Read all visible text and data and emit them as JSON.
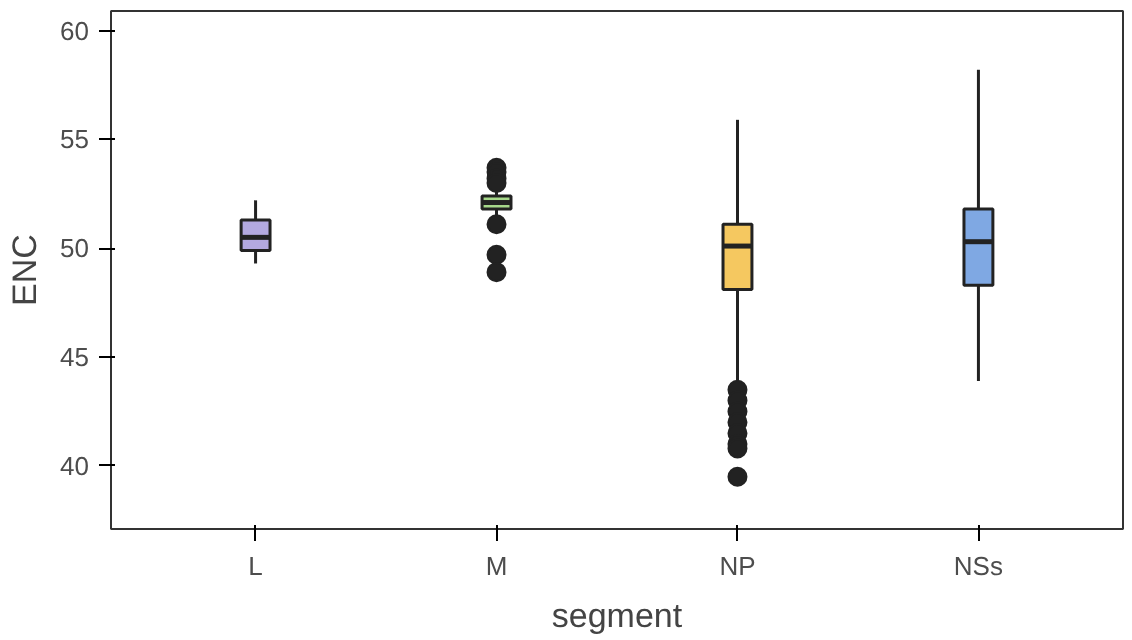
{
  "chart_data": {
    "type": "box",
    "xlabel": "segment",
    "ylabel": "ENC",
    "categories": [
      "L",
      "M",
      "NP",
      "NSs"
    ],
    "colors": [
      "#b3a9e0",
      "#a6d88a",
      "#f5c860",
      "#7fa8e3"
    ],
    "boxes": [
      {
        "low": 49.3,
        "q1": 49.9,
        "median": 50.5,
        "q3": 51.3,
        "high": 52.2
      },
      {
        "low": 51.3,
        "q1": 51.8,
        "median": 52.1,
        "q3": 52.4,
        "high": 52.9,
        "outliers": [
          53.7,
          53.5,
          53.2,
          53.0,
          51.1,
          49.7,
          48.9
        ]
      },
      {
        "low": 43.7,
        "q1": 48.1,
        "median": 50.1,
        "q3": 51.1,
        "high": 55.9,
        "outliers": [
          43.5,
          43.0,
          42.5,
          42.0,
          41.5,
          41.0,
          40.8,
          39.5
        ]
      },
      {
        "low": 43.9,
        "q1": 48.3,
        "median": 50.3,
        "q3": 51.8,
        "high": 58.2
      }
    ],
    "ylim": [
      37.1,
      60.9
    ],
    "yticks": [
      40,
      45,
      50,
      55,
      60
    ],
    "grid": false
  }
}
